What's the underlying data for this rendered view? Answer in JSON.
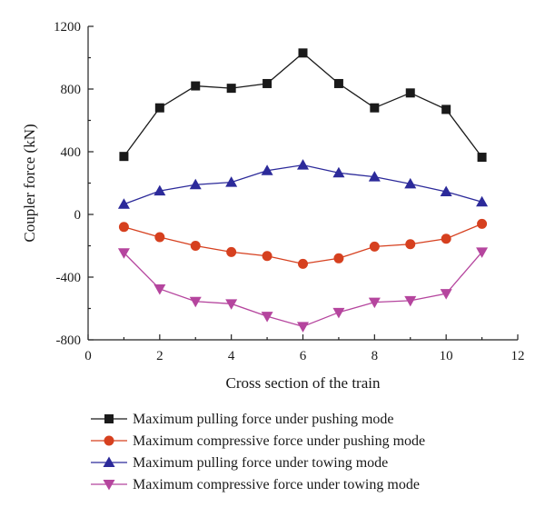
{
  "chart_data": {
    "type": "line",
    "title": "",
    "xlabel": "Cross section of the train",
    "ylabel": "Coupler force (kN)",
    "xlim": [
      0,
      12
    ],
    "ylim": [
      -800,
      1200
    ],
    "x_ticks": [
      0,
      2,
      4,
      6,
      8,
      10,
      12
    ],
    "y_ticks": [
      -800,
      -400,
      0,
      400,
      800,
      1200
    ],
    "grid": false,
    "legend_position": "bottom",
    "x": [
      1,
      2,
      3,
      4,
      5,
      6,
      7,
      8,
      9,
      10,
      11
    ],
    "series": [
      {
        "name": "Maximum pulling force under pushing mode",
        "color": "#1a1a1a",
        "marker": "square",
        "values": [
          370,
          680,
          820,
          805,
          835,
          1030,
          835,
          680,
          775,
          670,
          365
        ]
      },
      {
        "name": "Maximum compressive force under pushing mode",
        "color": "#d6401f",
        "marker": "circle",
        "values": [
          -80,
          -145,
          -200,
          -240,
          -265,
          -315,
          -280,
          -205,
          -190,
          -155,
          -60
        ]
      },
      {
        "name": "Maximum pulling force under towing mode",
        "color": "#2c2a9a",
        "marker": "triangle-up",
        "values": [
          65,
          150,
          190,
          205,
          280,
          315,
          265,
          240,
          195,
          145,
          80
        ]
      },
      {
        "name": "Maximum compressive force under towing mode",
        "color": "#b5459e",
        "marker": "triangle-down",
        "values": [
          -245,
          -475,
          -555,
          -570,
          -650,
          -715,
          -625,
          -560,
          -550,
          -505,
          -240
        ]
      }
    ]
  }
}
